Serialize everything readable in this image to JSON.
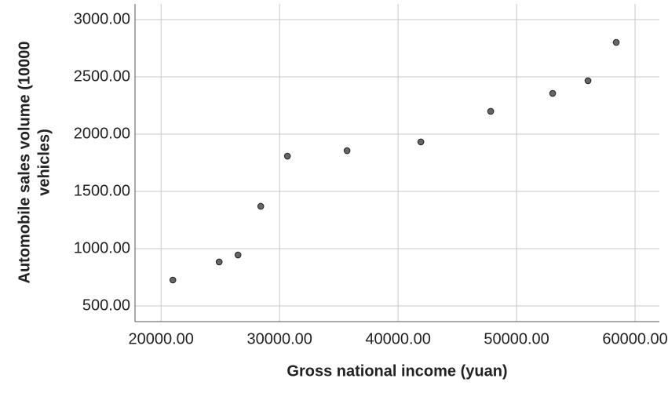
{
  "chart_data": {
    "type": "scatter",
    "x_label": "Gross national income (yuan)",
    "y_label": [
      "Automobile sales volume (10000",
      "vehicles)"
    ],
    "x": [
      20993,
      24901,
      26490,
      28411,
      30662,
      35695,
      41921,
      47815,
      53046,
      56026,
      58411
    ],
    "series": [
      {
        "color": "#666666",
        "values": [
          726,
          884,
          945,
          1370,
          1808,
          1856,
          1932,
          2199,
          2356,
          2466,
          2801
        ]
      }
    ],
    "xlim": [
      17800,
      62050
    ],
    "ylim": [
      363,
      3137
    ],
    "xticks": [
      {
        "value": 20000,
        "label": "20000.00"
      },
      {
        "value": 30000,
        "label": "30000.00"
      },
      {
        "value": 40000,
        "label": "40000.00"
      },
      {
        "value": 50000,
        "label": "50000.00"
      },
      {
        "value": 60000,
        "label": "60000.00"
      }
    ],
    "yticks": [
      {
        "value": 500,
        "label": "500.00"
      },
      {
        "value": 1000,
        "label": "1000.00"
      },
      {
        "value": 1500,
        "label": "1500.00"
      },
      {
        "value": 2000,
        "label": "2000.00"
      },
      {
        "value": 2500,
        "label": "2500.00"
      },
      {
        "value": 3000,
        "label": "3000.00"
      }
    ],
    "grid": true
  }
}
